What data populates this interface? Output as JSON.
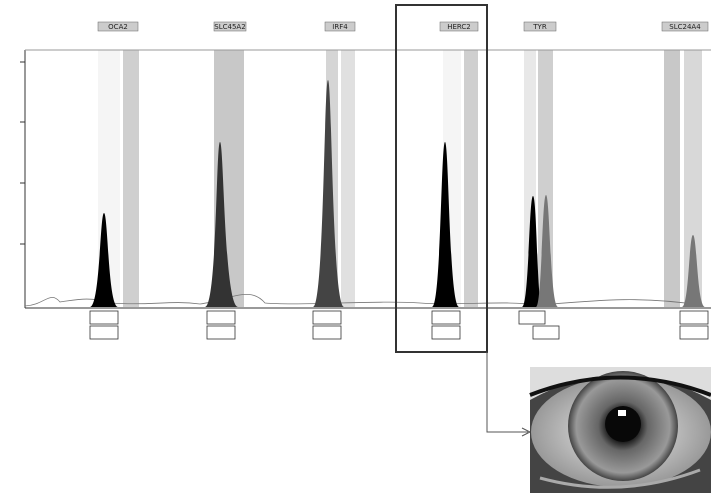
{
  "markers": [
    {
      "label": "OCA2"
    },
    {
      "label": "SLC45A2"
    },
    {
      "label": "IRF4"
    },
    {
      "label": "HERC2"
    },
    {
      "label": "TYR"
    },
    {
      "label": "SLC24A4"
    }
  ]
}
